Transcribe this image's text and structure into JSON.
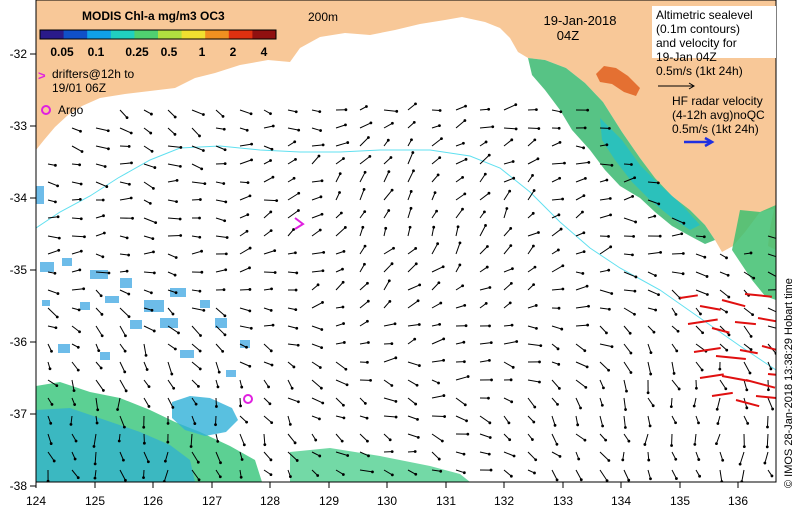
{
  "map": {
    "lon_ticks": [
      "124",
      "125",
      "126",
      "127",
      "128",
      "129",
      "130",
      "131",
      "132",
      "133",
      "134",
      "135",
      "136"
    ],
    "lat_ticks": [
      "-32",
      "-33",
      "-34",
      "-35",
      "-36",
      "-37",
      "-38"
    ],
    "contour_label": "200m",
    "date": "19-Jan-2018",
    "time": "04Z",
    "credit": "© IMOS 28-Jan-2018 13:38:29 Hobart time"
  },
  "colorbar": {
    "title": "MODIS Chl-a mg/m3 OC3",
    "labels": [
      "0.05",
      "0.1",
      "0.25",
      "0.5",
      "1",
      "2",
      "4"
    ],
    "colors": [
      "#2a1a8a",
      "#1050c8",
      "#10a0e8",
      "#20d0c0",
      "#50d070",
      "#b0e040",
      "#f0e030",
      "#f09020",
      "#e03010",
      "#901010"
    ]
  },
  "legend": {
    "drifters_symbol": ">",
    "drifters_line1": "drifters@12h to",
    "drifters_line2": "19/01 06Z",
    "argo": "Argo",
    "altimetric_lines": [
      "Altimetric sealevel",
      "(0.1m contours)",
      "and velocity for",
      "19-Jan 04Z",
      "0.5m/s (1kt 24h)"
    ],
    "hf_lines": [
      "HF radar velocity",
      "(4-12h avg)noQC",
      "0.5m/s (1kt 24h)"
    ]
  },
  "style": {
    "land": "#f8c898",
    "ocean": "#ffffff",
    "contour": "#60e0f0",
    "drifter": "#e020e0",
    "hf_arrow": "#e01010",
    "hf_legend_arrow": "#2030e0"
  }
}
